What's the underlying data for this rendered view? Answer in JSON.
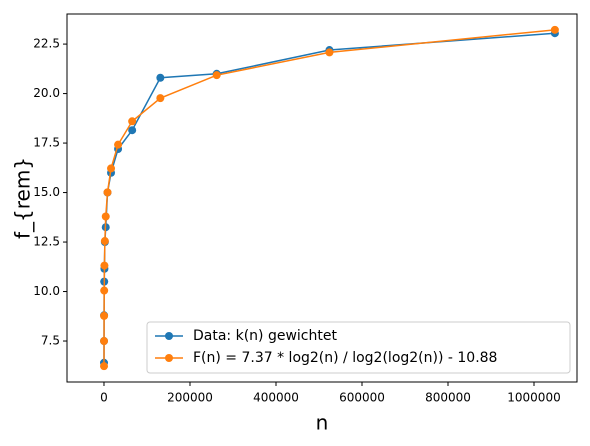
{
  "chart_data": {
    "type": "line",
    "xlabel": "n",
    "ylabel": "f_{rem}",
    "x": [
      64,
      128,
      256,
      512,
      1024,
      2048,
      4096,
      8192,
      16384,
      32768,
      65536,
      131072,
      262144,
      524288,
      1048576
    ],
    "series": [
      {
        "name": "Data: k(n) gewichtet",
        "color": "#1f77b4",
        "values": [
          6.4,
          7.5,
          8.8,
          10.5,
          11.15,
          12.5,
          13.25,
          15.0,
          16.0,
          17.2,
          18.15,
          20.8,
          21.0,
          22.2,
          23.05
        ]
      },
      {
        "name": "F(n) = 7.37 * log2(n) / log2(log2(n)) - 10.88",
        "color": "#ff7f0e",
        "values": [
          6.23,
          7.5,
          8.77,
          10.05,
          11.31,
          12.55,
          13.79,
          15.01,
          16.22,
          17.42,
          18.6,
          19.77,
          20.93,
          22.08,
          23.22
        ]
      }
    ],
    "xlim": [
      -86000,
      1100000
    ],
    "xticks": [
      0,
      200000,
      400000,
      600000,
      800000,
      1000000
    ],
    "ylim": [
      5.43,
      24.02
    ],
    "yticks": [
      7.5,
      {
        "value": 10,
        "label": "10.0"
      },
      12.5,
      {
        "value": 15,
        "label": "15.0"
      },
      17.5,
      {
        "value": 20,
        "label": "20.0"
      },
      22.5
    ],
    "grid": false,
    "legend": "lower right"
  }
}
